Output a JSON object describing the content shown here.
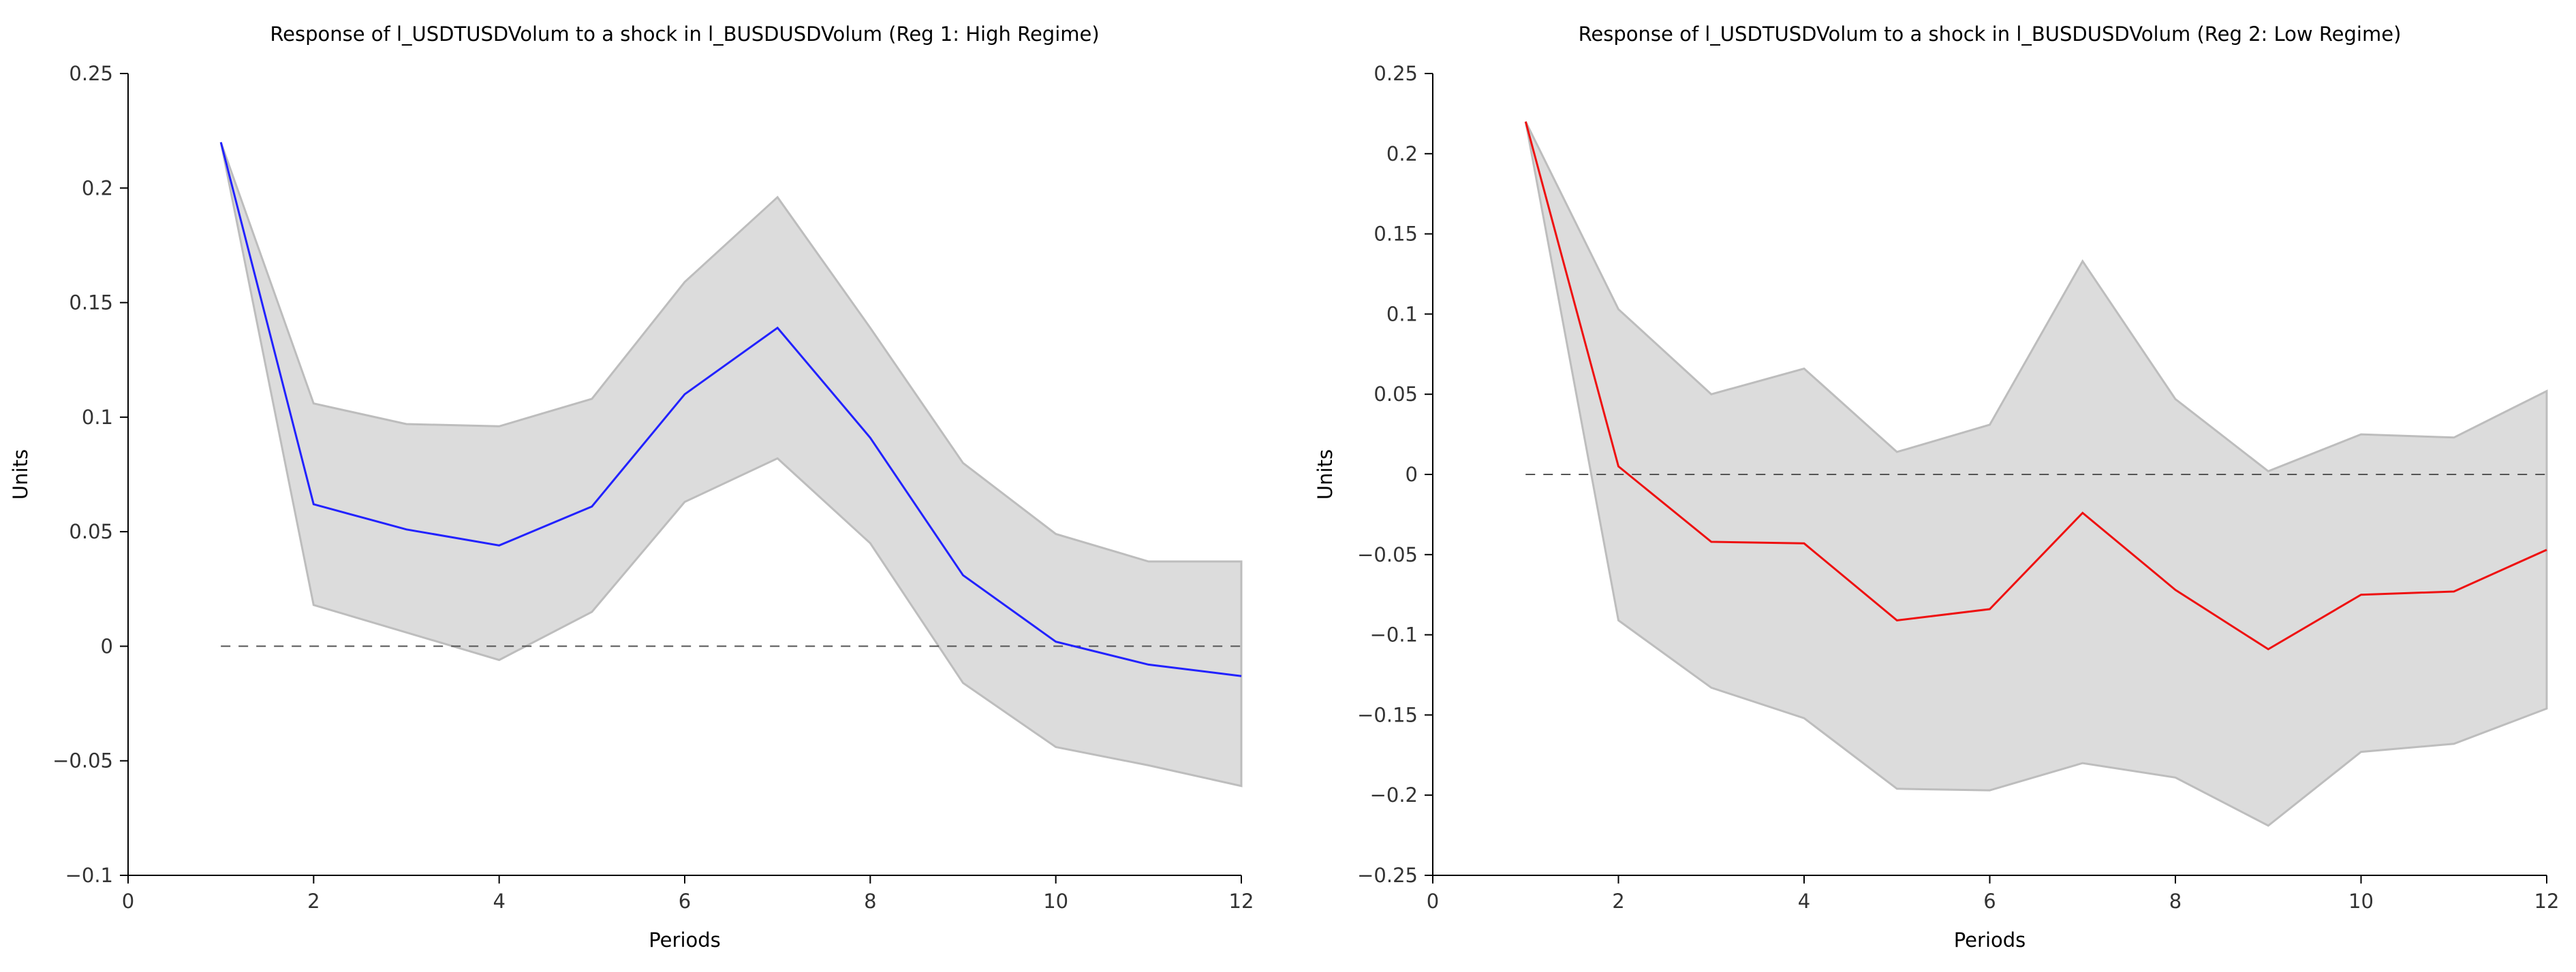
{
  "figure": {
    "background": "#ffffff"
  },
  "chart_data": [
    {
      "type": "area",
      "title": "Response of l_USDTUSDVolum to a shock in l_BUSDUSDVolum (Reg 1: High Regime)",
      "xlabel": "Periods",
      "ylabel": "Units",
      "xlim": [
        0,
        12
      ],
      "ylim": [
        -0.1,
        0.25
      ],
      "x_ticks": [
        0,
        2,
        4,
        6,
        8,
        10,
        12
      ],
      "x_tick_labels": [
        "0",
        "2",
        "4",
        "6",
        "8",
        "10",
        "12"
      ],
      "y_ticks": [
        -0.1,
        -0.05,
        0,
        0.05,
        0.1,
        0.15,
        0.2,
        0.25
      ],
      "y_tick_labels": [
        "−0.1",
        "−0.05",
        "0",
        "0.05",
        "0.1",
        "0.15",
        "0.2",
        "0.25"
      ],
      "zero_line": true,
      "grid": false,
      "x": [
        1,
        2,
        3,
        4,
        5,
        6,
        7,
        8,
        9,
        10,
        11,
        12
      ],
      "series": [
        {
          "name": "response",
          "color": "#2222ff",
          "values": [
            0.22,
            0.062,
            0.051,
            0.044,
            0.061,
            0.11,
            0.139,
            0.091,
            0.031,
            0.002,
            -0.008,
            -0.013
          ]
        }
      ],
      "band": {
        "color": "#dcdcdc",
        "edge_color": "#bdbdbd",
        "upper": [
          0.22,
          0.106,
          0.097,
          0.096,
          0.108,
          0.159,
          0.196,
          0.139,
          0.08,
          0.049,
          0.037,
          0.037
        ],
        "lower": [
          0.22,
          0.018,
          0.006,
          -0.006,
          0.015,
          0.063,
          0.082,
          0.045,
          -0.016,
          -0.044,
          -0.052,
          -0.061
        ]
      }
    },
    {
      "type": "area",
      "title": "Response of l_USDTUSDVolum to a shock in l_BUSDUSDVolum (Reg 2: Low Regime)",
      "xlabel": "Periods",
      "ylabel": "Units",
      "xlim": [
        0,
        12
      ],
      "ylim": [
        -0.25,
        0.25
      ],
      "x_ticks": [
        0,
        2,
        4,
        6,
        8,
        10,
        12
      ],
      "x_tick_labels": [
        "0",
        "2",
        "4",
        "6",
        "8",
        "10",
        "12"
      ],
      "y_ticks": [
        -0.25,
        -0.2,
        -0.15,
        -0.1,
        -0.05,
        0,
        0.05,
        0.1,
        0.15,
        0.2,
        0.25
      ],
      "y_tick_labels": [
        "−0.25",
        "−0.2",
        "−0.15",
        "−0.1",
        "−0.05",
        "0",
        "0.05",
        "0.1",
        "0.15",
        "0.2",
        "0.25"
      ],
      "zero_line": true,
      "grid": false,
      "x": [
        1,
        2,
        3,
        4,
        5,
        6,
        7,
        8,
        9,
        10,
        11,
        12
      ],
      "series": [
        {
          "name": "response",
          "color": "#ee1111",
          "values": [
            0.22,
            0.005,
            -0.042,
            -0.043,
            -0.091,
            -0.084,
            -0.024,
            -0.072,
            -0.109,
            -0.075,
            -0.073,
            -0.047
          ]
        }
      ],
      "band": {
        "color": "#dcdcdc",
        "edge_color": "#bdbdbd",
        "upper": [
          0.22,
          0.103,
          0.05,
          0.066,
          0.014,
          0.031,
          0.133,
          0.047,
          0.002,
          0.025,
          0.023,
          0.052
        ],
        "lower": [
          0.22,
          -0.091,
          -0.133,
          -0.152,
          -0.196,
          -0.197,
          -0.18,
          -0.189,
          -0.219,
          -0.173,
          -0.168,
          -0.146
        ]
      }
    }
  ]
}
